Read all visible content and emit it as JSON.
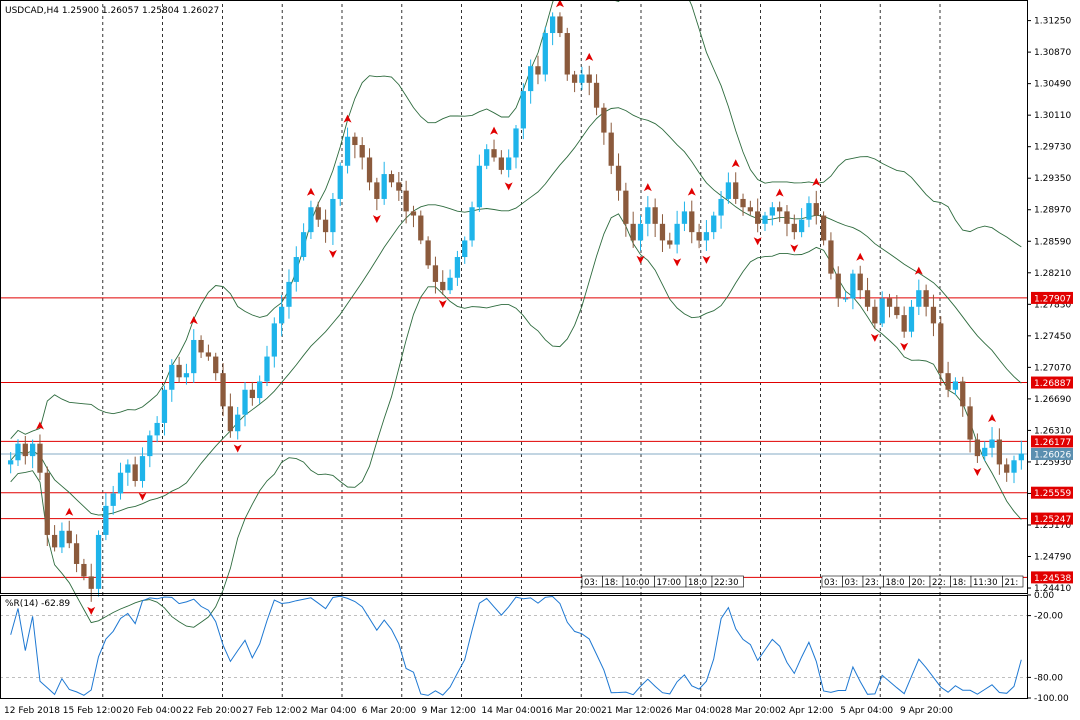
{
  "header": {
    "symbol": "USDCAD,H4",
    "ohlc": "1.25900 1.26057 1.25804 1.26027"
  },
  "indicator": {
    "label": "%R(14) -62.89",
    "levels": [
      "0.00",
      "-20.00",
      "-80.00",
      "-100.00"
    ]
  },
  "colors": {
    "bull": "#1eb4ea",
    "bear": "#8b5a3c",
    "band": "#2e6b3e",
    "level": "#e10000",
    "wpr": "#1e78d2",
    "current": "#5b8fb0",
    "arrow": "#e10000",
    "grid": "#000000"
  },
  "chart_data": {
    "type": "candlestick",
    "price_range": [
      1.2435,
      1.3145
    ],
    "y_ticks": [
      "1.31250",
      "1.30870",
      "1.30490",
      "1.30110",
      "1.29730",
      "1.29350",
      "1.28970",
      "1.28590",
      "1.28210",
      "1.27830",
      "1.27450",
      "1.27070",
      "1.26690",
      "1.26310",
      "1.25930",
      "1.25550",
      "1.25170",
      "1.24790",
      "1.24410"
    ],
    "x_ticks": [
      "12 Feb 2018",
      "15 Feb 12:00",
      "20 Feb 04:00",
      "22 Feb 20:00",
      "27 Feb 12:00",
      "2 Mar 04:00",
      "6 Mar 20:00",
      "9 Mar 12:00",
      "14 Mar 04:00",
      "16 Mar 20:00",
      "21 Mar 12:00",
      "26 Mar 04:00",
      "28 Mar 20:00",
      "2 Apr 12:00",
      "5 Apr 04:00",
      "9 Apr 20:00"
    ],
    "levels": [
      "1.27907",
      "1.26887",
      "1.26177",
      "1.25559",
      "1.25247",
      "1.24538"
    ],
    "current_price": "1.26026",
    "session_labels_left": [
      "03:",
      "18:",
      "10:00",
      "17:00",
      "18:0",
      "22:30"
    ],
    "session_labels_right": [
      "03:",
      "03:",
      "23:",
      "18:0",
      "20:",
      "22:",
      "18:",
      "11:30",
      "21:"
    ],
    "wpr_range": [
      -100,
      0
    ],
    "wpr_value": -62.89,
    "path": [
      1.2595,
      1.2615,
      1.26,
      1.2615,
      1.258,
      1.2505,
      1.249,
      1.251,
      1.2495,
      1.247,
      1.2455,
      1.244,
      1.2505,
      1.254,
      1.2555,
      1.258,
      1.259,
      1.257,
      1.26,
      1.2625,
      1.264,
      1.268,
      1.271,
      1.2695,
      1.27,
      1.274,
      1.2725,
      1.272,
      1.27,
      1.266,
      1.263,
      1.265,
      1.268,
      1.267,
      1.269,
      1.272,
      1.276,
      1.278,
      1.281,
      1.284,
      1.287,
      1.29,
      1.2885,
      1.287,
      1.291,
      1.295,
      1.2985,
      1.2975,
      1.296,
      1.293,
      1.291,
      1.294,
      1.293,
      1.292,
      1.2895,
      1.289,
      1.286,
      1.283,
      1.281,
      1.28,
      1.2815,
      1.284,
      1.286,
      1.29,
      1.295,
      1.297,
      1.296,
      1.2945,
      1.296,
      1.2995,
      1.304,
      1.307,
      1.306,
      1.311,
      1.313,
      1.311,
      1.306,
      1.305,
      1.306,
      1.305,
      1.302,
      1.299,
      1.295,
      1.292,
      1.288,
      1.286,
      1.288,
      1.29,
      1.288,
      1.286,
      1.2855,
      1.288,
      1.2895,
      1.287,
      1.286,
      1.287,
      1.289,
      1.291,
      1.293,
      1.291,
      1.29,
      1.2895,
      1.288,
      1.289,
      1.29,
      1.2895,
      1.288,
      1.287,
      1.2885,
      1.2905,
      1.289,
      1.286,
      1.282,
      1.279,
      1.279,
      1.282,
      1.28,
      1.278,
      1.276,
      1.279,
      1.278,
      1.277,
      1.275,
      1.278,
      1.28,
      1.278,
      1.276,
      1.27,
      1.268,
      1.269,
      1.266,
      1.262,
      1.26,
      1.261,
      1.262,
      1.259,
      1.258,
      1.2595,
      1.2603
    ]
  }
}
